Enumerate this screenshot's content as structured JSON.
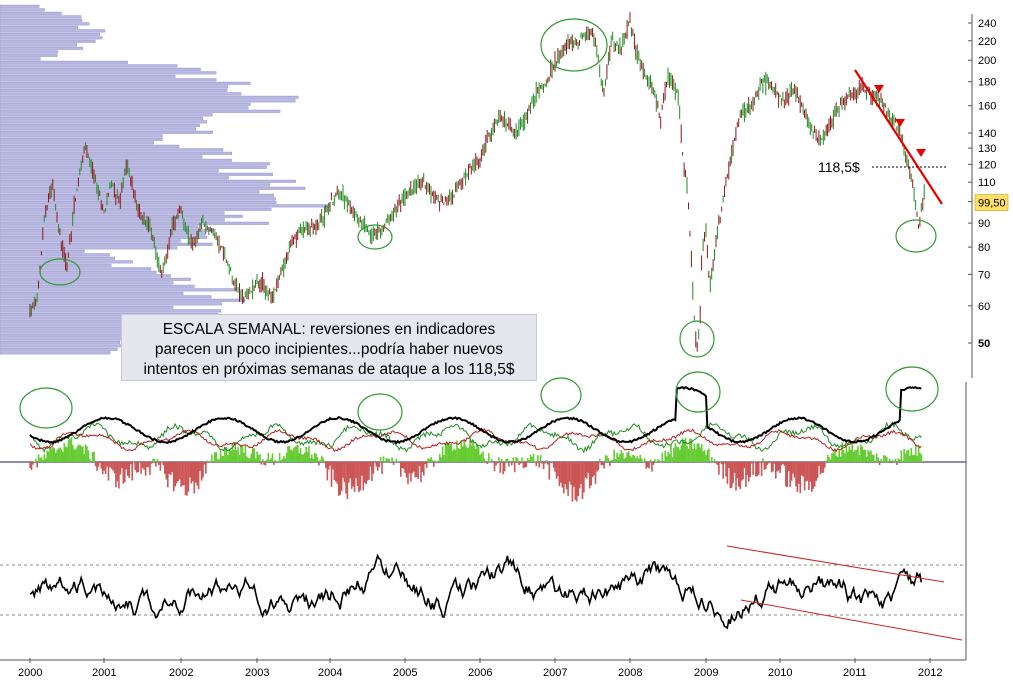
{
  "chart_data": [
    {
      "type": "candlestick",
      "panel": "price",
      "scale": "log",
      "ylim": [
        45,
        245
      ],
      "y_ticks": [
        50,
        60,
        70,
        80,
        90,
        100,
        110,
        120,
        130,
        140,
        160,
        180,
        200,
        220,
        240
      ],
      "y_tick_labels": [
        "50",
        "60",
        "70",
        "80",
        "90",
        "100",
        "110",
        "120",
        "130",
        "140",
        "160",
        "180",
        "200",
        "220",
        "240"
      ],
      "x_ticks": [
        2000,
        2001,
        2002,
        2003,
        2004,
        2005,
        2006,
        2007,
        2008,
        2009,
        2010,
        2011,
        2012
      ],
      "x_tick_labels": [
        "2000",
        "2001",
        "2002",
        "2003",
        "2004",
        "2005",
        "2006",
        "2007",
        "2008",
        "2009",
        "2010",
        "2011",
        "2012"
      ],
      "xlim": [
        2000.0,
        2012.5
      ],
      "price_path": [
        [
          2000.0,
          58
        ],
        [
          2000.1,
          62
        ],
        [
          2000.2,
          95
        ],
        [
          2000.3,
          110
        ],
        [
          2000.4,
          85
        ],
        [
          2000.5,
          72
        ],
        [
          2000.6,
          100
        ],
        [
          2000.7,
          120
        ],
        [
          2000.75,
          130
        ],
        [
          2000.9,
          108
        ],
        [
          2001.0,
          95
        ],
        [
          2001.1,
          110
        ],
        [
          2001.2,
          100
        ],
        [
          2001.3,
          120
        ],
        [
          2001.45,
          95
        ],
        [
          2001.6,
          88
        ],
        [
          2001.75,
          70
        ],
        [
          2001.9,
          90
        ],
        [
          2002.0,
          95
        ],
        [
          2002.15,
          80
        ],
        [
          2002.3,
          90
        ],
        [
          2002.45,
          85
        ],
        [
          2002.6,
          75
        ],
        [
          2002.75,
          65
        ],
        [
          2002.85,
          62
        ],
        [
          2003.0,
          68
        ],
        [
          2003.1,
          66
        ],
        [
          2003.2,
          62
        ],
        [
          2003.3,
          68
        ],
        [
          2003.45,
          80
        ],
        [
          2003.6,
          87
        ],
        [
          2003.8,
          88
        ],
        [
          2003.95,
          95
        ],
        [
          2004.05,
          102
        ],
        [
          2004.15,
          105
        ],
        [
          2004.3,
          95
        ],
        [
          2004.45,
          90
        ],
        [
          2004.55,
          85
        ],
        [
          2004.65,
          86
        ],
        [
          2004.8,
          92
        ],
        [
          2004.95,
          100
        ],
        [
          2005.1,
          107
        ],
        [
          2005.25,
          110
        ],
        [
          2005.4,
          102
        ],
        [
          2005.55,
          100
        ],
        [
          2005.7,
          107
        ],
        [
          2005.85,
          115
        ],
        [
          2006.0,
          125
        ],
        [
          2006.1,
          135
        ],
        [
          2006.25,
          150
        ],
        [
          2006.4,
          145
        ],
        [
          2006.5,
          140
        ],
        [
          2006.6,
          150
        ],
        [
          2006.75,
          170
        ],
        [
          2006.9,
          180
        ],
        [
          2007.0,
          200
        ],
        [
          2007.15,
          215
        ],
        [
          2007.3,
          220
        ],
        [
          2007.45,
          230
        ],
        [
          2007.55,
          215
        ],
        [
          2007.65,
          170
        ],
        [
          2007.75,
          220
        ],
        [
          2007.85,
          210
        ],
        [
          2007.95,
          230
        ],
        [
          2008.0,
          240
        ],
        [
          2008.1,
          205
        ],
        [
          2008.2,
          185
        ],
        [
          2008.3,
          175
        ],
        [
          2008.4,
          150
        ],
        [
          2008.5,
          185
        ],
        [
          2008.6,
          175
        ],
        [
          2008.65,
          160
        ],
        [
          2008.7,
          120
        ],
        [
          2008.75,
          110
        ],
        [
          2008.8,
          80
        ],
        [
          2008.85,
          55
        ],
        [
          2008.88,
          49
        ],
        [
          2008.92,
          55
        ],
        [
          2008.95,
          80
        ],
        [
          2009.0,
          85
        ],
        [
          2009.05,
          65
        ],
        [
          2009.1,
          75
        ],
        [
          2009.2,
          95
        ],
        [
          2009.3,
          115
        ],
        [
          2009.4,
          140
        ],
        [
          2009.5,
          155
        ],
        [
          2009.6,
          160
        ],
        [
          2009.7,
          170
        ],
        [
          2009.75,
          180
        ],
        [
          2009.85,
          180
        ],
        [
          2009.95,
          170
        ],
        [
          2010.05,
          160
        ],
        [
          2010.15,
          175
        ],
        [
          2010.25,
          165
        ],
        [
          2010.35,
          150
        ],
        [
          2010.45,
          140
        ],
        [
          2010.55,
          135
        ],
        [
          2010.65,
          145
        ],
        [
          2010.75,
          155
        ],
        [
          2010.85,
          165
        ],
        [
          2010.95,
          170
        ],
        [
          2011.0,
          168
        ],
        [
          2011.1,
          175
        ],
        [
          2011.2,
          170
        ],
        [
          2011.3,
          168
        ],
        [
          2011.4,
          160
        ],
        [
          2011.5,
          150
        ],
        [
          2011.6,
          140
        ],
        [
          2011.7,
          120
        ],
        [
          2011.75,
          115
        ],
        [
          2011.8,
          100
        ],
        [
          2011.85,
          88
        ],
        [
          2011.9,
          100
        ],
        [
          2011.95,
          110
        ],
        [
          2012.0,
          100
        ]
      ],
      "last_price_label": "99,50",
      "annotations": {
        "level_label": "118,5$",
        "note_lines": [
          "ESCALA SEMANAL: reversiones en indicadores",
          "parecen un poco incipientes...podría haber nuevos",
          "intentos en próximas semanas de ataque a los 118,5$"
        ]
      },
      "volume_profile": "horizontal bars on left side"
    },
    {
      "type": "line+histogram",
      "panel": "oscillators",
      "series": [
        {
          "color": "#000000",
          "values": "black oscillator line"
        },
        {
          "color": "#228b22",
          "values": "green oscillator line"
        },
        {
          "color": "#b22222",
          "values": "red oscillator line"
        },
        {
          "color": "#66cc33",
          "values": "positive histogram"
        },
        {
          "color": "#cc5555",
          "values": "negative histogram"
        }
      ]
    },
    {
      "type": "line",
      "panel": "rsi",
      "upper_band": "dashed",
      "lower_band": "dashed",
      "trend_channel": "red lines 2009-2012"
    }
  ],
  "colors": {
    "up": "#228b22",
    "down": "#8b1a1a",
    "volume_profile": "#aaaadd",
    "trendline": "#e60000",
    "circle": "#2f9a2f",
    "last_price_bg": "#ffe066"
  }
}
